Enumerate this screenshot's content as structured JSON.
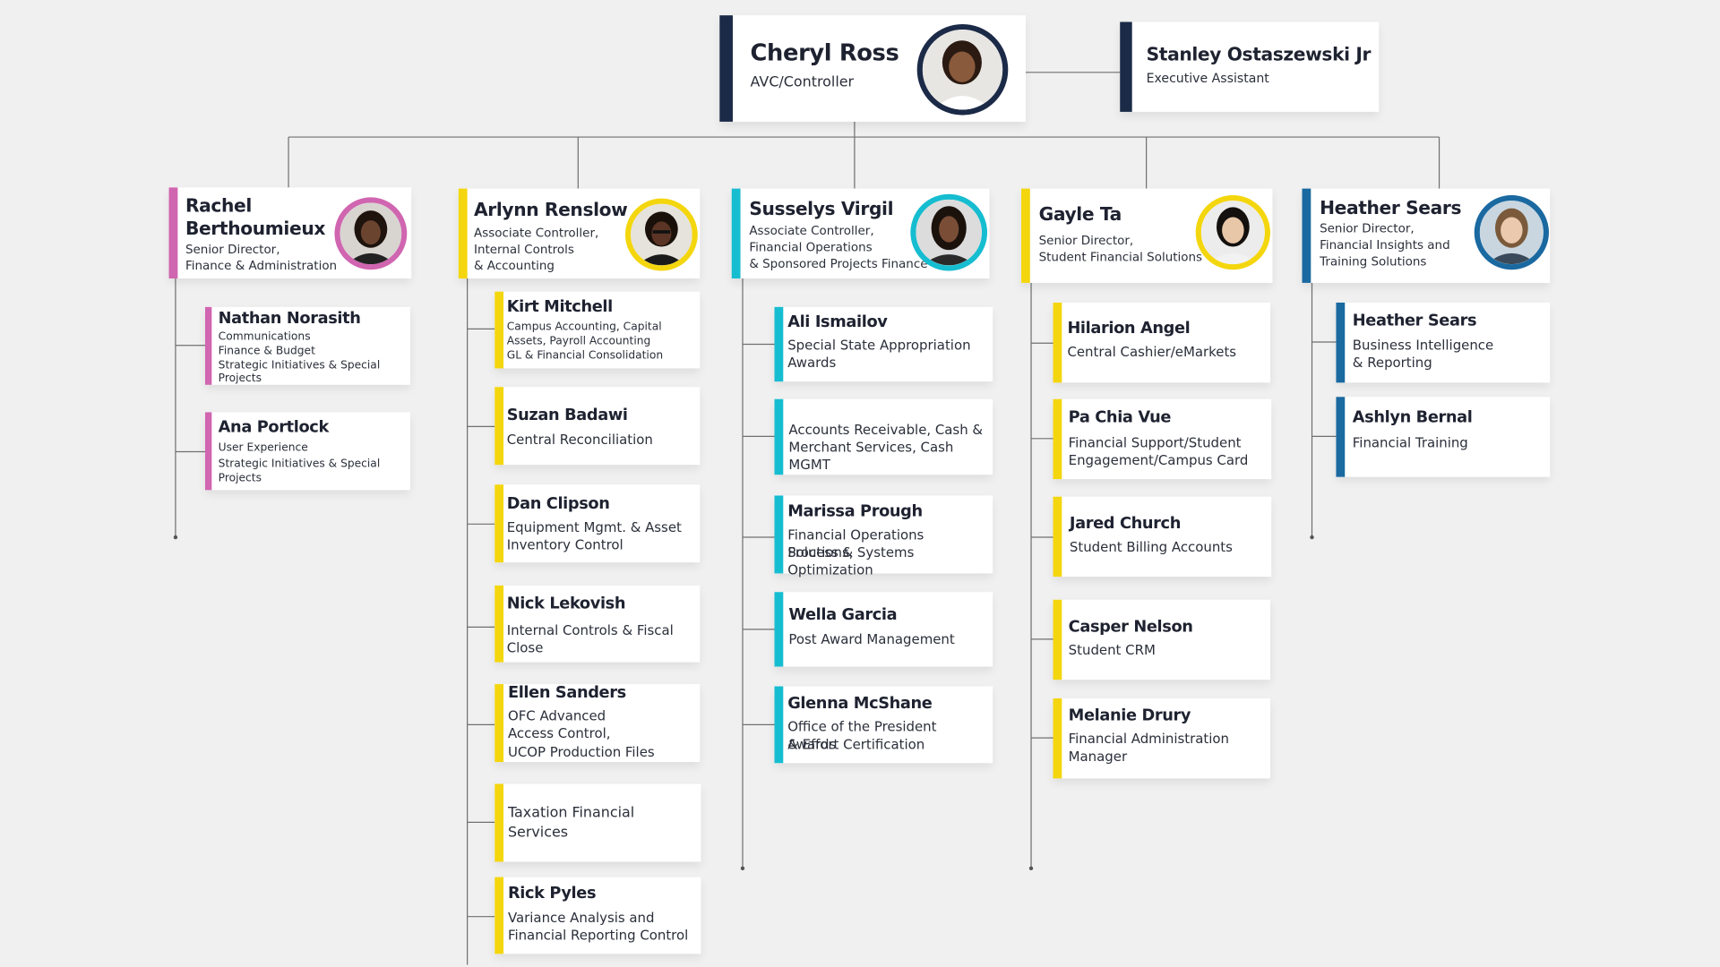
{
  "colors": {
    "navy": "#1b2a47",
    "pink": "#d065b0",
    "yellow": "#f4d60e",
    "cyan": "#16bdd0",
    "blue": "#1a69a0"
  },
  "top": {
    "name": "Cheryl Ross",
    "title": "AVC/Controller",
    "avatar_icon": "person-photo-icon"
  },
  "assistant": {
    "name": "Stanley Ostaszewski Jr",
    "title": "Executive Assistant"
  },
  "leaders": [
    {
      "name_line1": "Rachel",
      "name_line2": "Berthoumieux",
      "title_line1": "Senior Director,",
      "title_line2": "Finance & Administration",
      "title_line3": "",
      "color": "#d065b0",
      "reports": [
        {
          "name": "Nathan Norasith",
          "lines": [
            "Communications",
            "Finance & Budget",
            "Strategic Initiatives & Special",
            "Projects"
          ]
        },
        {
          "name": "Ana Portlock",
          "lines": [
            "User Experience",
            "Strategic Initiatives & Special",
            "Projects"
          ]
        }
      ]
    },
    {
      "name_line1": "Arlynn Renslow",
      "name_line2": "",
      "title_line1": "Associate Controller,",
      "title_line2": "Internal Controls",
      "title_line3": "& Accounting",
      "color": "#f4d60e",
      "reports": [
        {
          "name": "Kirt Mitchell",
          "lines": [
            "Campus Accounting, Capital",
            "Assets, Payroll Accounting",
            "GL & Financial Consolidation"
          ]
        },
        {
          "name": "Suzan Badawi",
          "lines": [
            "Central Reconciliation"
          ]
        },
        {
          "name": "Dan Clipson",
          "lines": [
            "Equipment Mgmt. & Asset",
            "Inventory Control"
          ]
        },
        {
          "name": "Nick Lekovish",
          "lines": [
            "Internal Controls & Fiscal",
            "Close"
          ]
        },
        {
          "name": "Ellen Sanders",
          "lines": [
            "OFC Advanced",
            "Access Control,",
            "UCOP Production Files"
          ]
        },
        {
          "name": "",
          "lines": [
            "Taxation Financial",
            "Services"
          ]
        },
        {
          "name": "Rick Pyles",
          "lines": [
            "Variance Analysis and",
            "Financial Reporting Control"
          ]
        }
      ]
    },
    {
      "name_line1": "Susselys Virgil",
      "name_line2": "",
      "title_line1": "Associate Controller,",
      "title_line2": "Financial Operations",
      "title_line3": "& Sponsored Projects Finance",
      "color": "#16bdd0",
      "reports": [
        {
          "name": "Ali Ismailov",
          "lines": [
            "Special State Appropriation",
            "Awards"
          ]
        },
        {
          "name": "",
          "lines": [
            "Accounts Receivable, Cash &",
            "Merchant Services, Cash MGMT"
          ]
        },
        {
          "name": "Marissa Prough",
          "lines": [
            "Financial Operations Solutions,",
            "Process & Systems Optimization"
          ]
        },
        {
          "name": "Wella Garcia",
          "lines": [
            "Post Award Management"
          ]
        },
        {
          "name": "Glenna McShane",
          "lines": [
            "Office of the President Awards",
            "& Effort Certification"
          ]
        }
      ]
    },
    {
      "name_line1": "Gayle Ta",
      "name_line2": "",
      "title_line1": "Senior Director,",
      "title_line2": "Student Financial Solutions",
      "title_line3": "",
      "color": "#f4d60e",
      "reports": [
        {
          "name": "Hilarion Angel",
          "lines": [
            "Central Cashier/eMarkets"
          ]
        },
        {
          "name": "Pa Chia Vue",
          "lines": [
            "Financial Support/Student",
            "Engagement/Campus Card"
          ]
        },
        {
          "name": "Jared Church",
          "lines": [
            "Student Billing Accounts"
          ]
        },
        {
          "name": "Casper Nelson",
          "lines": [
            "Student CRM"
          ]
        },
        {
          "name": "Melanie Drury",
          "lines": [
            "Financial Administration",
            "Manager"
          ]
        }
      ]
    },
    {
      "name_line1": "Heather Sears",
      "name_line2": "",
      "title_line1": "Senior Director,",
      "title_line2": "Financial Insights and",
      "title_line3": "Training Solutions",
      "color": "#1a69a0",
      "reports": [
        {
          "name": "Heather Sears",
          "lines": [
            "Business Intelligence",
            "& Reporting"
          ]
        },
        {
          "name": "Ashlyn Bernal",
          "lines": [
            "Financial Training"
          ]
        }
      ]
    }
  ]
}
